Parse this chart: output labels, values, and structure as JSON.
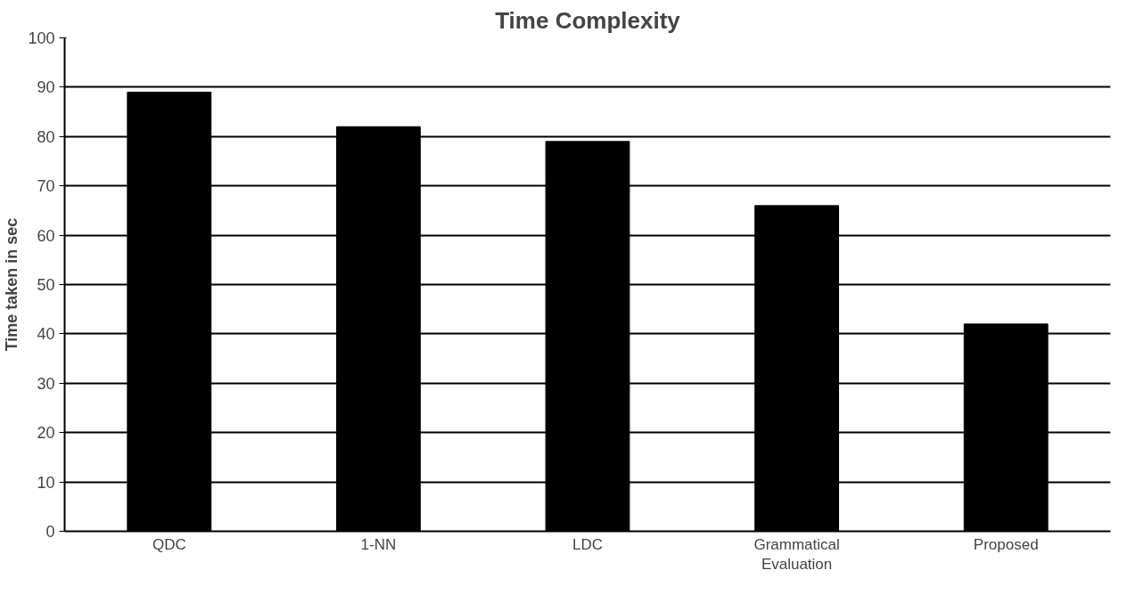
{
  "chart_data": {
    "type": "bar",
    "title": "Time Complexity",
    "ylabel": "Time taken in sec",
    "categories": [
      "QDC",
      "1-NN",
      "LDC",
      "Grammatical Evaluation",
      "Proposed"
    ],
    "values": [
      89,
      82,
      79,
      66,
      42
    ],
    "color": "#000000",
    "ylim": [
      0,
      100
    ],
    "yticks": [
      0,
      10,
      20,
      30,
      40,
      50,
      60,
      70,
      80,
      90,
      100
    ],
    "grid": "y"
  }
}
